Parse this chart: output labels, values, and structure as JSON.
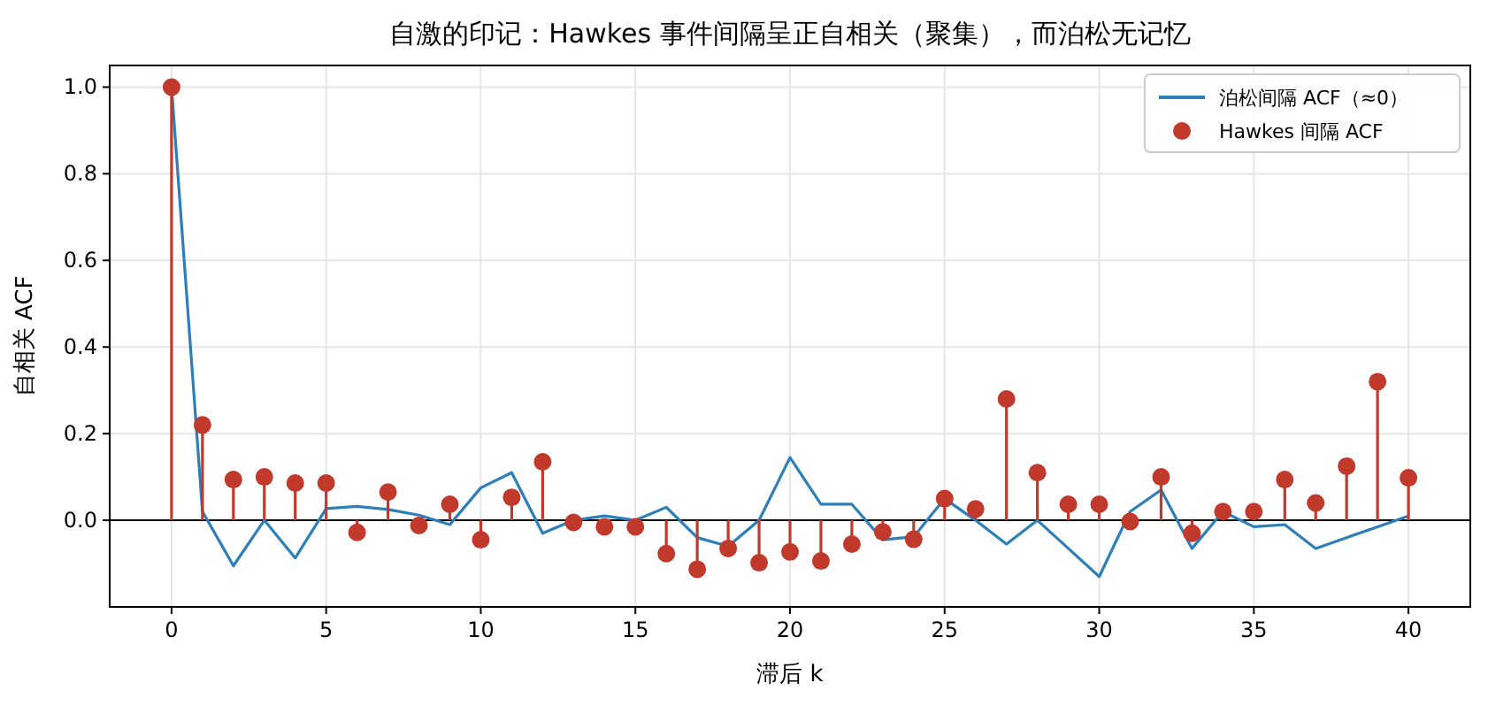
{
  "chart_data": {
    "type": "line",
    "title": "自激的印记：Hawkes 事件间隔呈正自相关（聚集），而泊松无记忆",
    "xlabel": "滞后 k",
    "ylabel": "自相关 ACF",
    "x": [
      0,
      1,
      2,
      3,
      4,
      5,
      6,
      7,
      8,
      9,
      10,
      11,
      12,
      13,
      14,
      15,
      16,
      17,
      18,
      19,
      20,
      21,
      22,
      23,
      24,
      25,
      26,
      27,
      28,
      29,
      30,
      31,
      32,
      33,
      34,
      35,
      36,
      37,
      38,
      39,
      40
    ],
    "series": [
      {
        "name": "泊松间隔 ACF（≈0）",
        "color": "#2c7fb8",
        "marker": "none",
        "values": [
          1.0,
          0.02,
          -0.105,
          0.0,
          -0.087,
          0.027,
          0.032,
          0.025,
          0.012,
          -0.01,
          0.075,
          0.11,
          -0.03,
          0.0,
          0.01,
          0.0,
          0.03,
          -0.04,
          -0.06,
          0.0,
          0.145,
          0.037,
          0.037,
          -0.045,
          -0.038,
          0.05,
          0.0,
          -0.055,
          0.0,
          -0.065,
          -0.13,
          0.02,
          0.07,
          -0.065,
          0.02,
          -0.015,
          -0.01,
          -0.065,
          -0.04,
          -0.015,
          0.01
        ]
      },
      {
        "name": "Hawkes 间隔 ACF",
        "type": "lollipop",
        "color": "#c0392b",
        "marker": "circle",
        "values": [
          1.0,
          0.22,
          0.094,
          0.1,
          0.086,
          0.086,
          -0.028,
          0.065,
          -0.012,
          0.037,
          -0.045,
          0.053,
          0.135,
          -0.005,
          -0.015,
          -0.015,
          -0.077,
          -0.113,
          -0.065,
          -0.098,
          -0.073,
          -0.094,
          -0.055,
          -0.027,
          -0.044,
          0.05,
          0.026,
          0.28,
          0.11,
          0.037,
          0.037,
          -0.003,
          0.1,
          -0.03,
          0.02,
          0.02,
          0.094,
          0.04,
          0.125,
          0.32,
          0.098
        ]
      }
    ],
    "xlim": [
      -2,
      42
    ],
    "xticks": [
      0,
      5,
      10,
      15,
      20,
      25,
      30,
      35,
      40
    ],
    "ylim": [
      -0.2,
      1.05
    ],
    "yticks": [
      {
        "value": 0,
        "label": "0.0"
      },
      0.2,
      0.4,
      0.6,
      0.8,
      {
        "value": 1,
        "label": "1.0"
      }
    ],
    "ref_lines": [
      {
        "axis": "y",
        "value": 0,
        "color": "#000000"
      }
    ],
    "grid": true,
    "legend": "top right"
  }
}
